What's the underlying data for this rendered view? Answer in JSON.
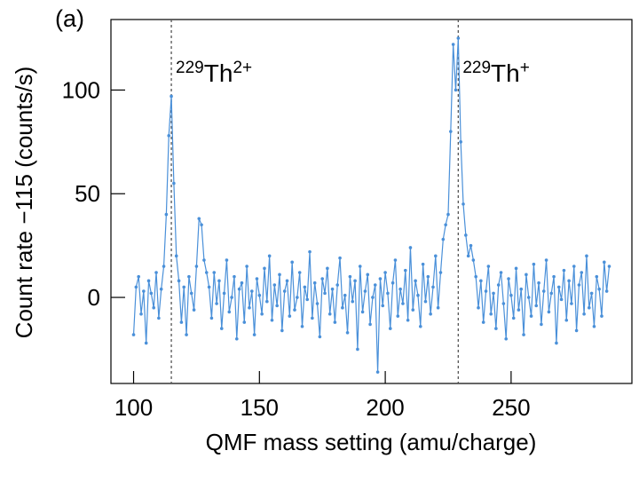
{
  "chart_data": {
    "type": "line",
    "panel_label": "(a)",
    "xlabel": "QMF mass setting (amu/charge)",
    "ylabel": "Count rate −115 (counts/s)",
    "color": "#4a90d9",
    "xlim": [
      91,
      298
    ],
    "ylim": [
      -41.5,
      134
    ],
    "xticks": [
      100,
      150,
      200,
      250
    ],
    "yticks": [
      0,
      50,
      100
    ],
    "vlines": [
      115,
      229
    ],
    "annotations": [
      {
        "mass": "229",
        "element": "Th",
        "charge": "2+"
      },
      {
        "mass": "229",
        "element": "Th",
        "charge": "+"
      }
    ],
    "x": [
      100,
      101,
      102,
      103,
      104,
      105,
      106,
      107,
      108,
      109,
      110,
      111,
      112,
      113,
      114,
      115,
      116,
      117,
      118,
      119,
      120,
      121,
      122,
      123,
      124,
      125,
      126,
      127,
      128,
      129,
      130,
      131,
      132,
      133,
      134,
      135,
      136,
      137,
      138,
      139,
      140,
      141,
      142,
      143,
      144,
      145,
      146,
      147,
      148,
      149,
      150,
      151,
      152,
      153,
      154,
      155,
      156,
      157,
      158,
      159,
      160,
      161,
      162,
      163,
      164,
      165,
      166,
      167,
      168,
      169,
      170,
      171,
      172,
      173,
      174,
      175,
      176,
      177,
      178,
      179,
      180,
      181,
      182,
      183,
      184,
      185,
      186,
      187,
      188,
      189,
      190,
      191,
      192,
      193,
      194,
      195,
      196,
      197,
      198,
      199,
      200,
      201,
      202,
      203,
      204,
      205,
      206,
      207,
      208,
      209,
      210,
      211,
      212,
      213,
      214,
      215,
      216,
      217,
      218,
      219,
      220,
      221,
      222,
      223,
      224,
      225,
      226,
      227,
      228,
      229,
      230,
      231,
      232,
      233,
      234,
      235,
      236,
      237,
      238,
      239,
      240,
      241,
      242,
      243,
      244,
      245,
      246,
      247,
      248,
      249,
      250,
      251,
      252,
      253,
      254,
      255,
      256,
      257,
      258,
      259,
      260,
      261,
      262,
      263,
      264,
      265,
      266,
      267,
      268,
      269,
      270,
      271,
      272,
      273,
      274,
      275,
      276,
      277,
      278,
      279,
      280,
      281,
      282,
      283,
      284,
      285,
      286,
      287,
      288,
      289
    ],
    "values": [
      -18,
      5,
      10,
      -8,
      3,
      -22,
      8,
      2,
      -5,
      12,
      -10,
      4,
      15,
      40,
      78,
      97,
      55,
      20,
      8,
      -12,
      5,
      -18,
      10,
      2,
      -6,
      15,
      38,
      35,
      18,
      12,
      5,
      -10,
      12,
      -3,
      8,
      -15,
      2,
      18,
      -7,
      0,
      10,
      -20,
      4,
      7,
      -12,
      15,
      -5,
      3,
      -18,
      9,
      1,
      -8,
      14,
      -2,
      20,
      -11,
      6,
      -4,
      11,
      -16,
      3,
      8,
      -9,
      17,
      -6,
      0,
      12,
      -14,
      5,
      -1,
      22,
      -10,
      7,
      -3,
      -19,
      9,
      2,
      14,
      -8,
      4,
      -12,
      6,
      19,
      -5,
      1,
      -17,
      10,
      -2,
      8,
      -25,
      15,
      -7,
      3,
      11,
      -13,
      0,
      6,
      -36,
      9,
      -4,
      12,
      2,
      -15,
      7,
      18,
      -9,
      4,
      -3,
      13,
      -11,
      24,
      -6,
      8,
      1,
      -14,
      16,
      -2,
      10,
      -8,
      5,
      20,
      -5,
      12,
      28,
      35,
      40,
      80,
      122,
      100,
      125,
      75,
      45,
      30,
      20,
      25,
      18,
      10,
      -5,
      8,
      -12,
      3,
      15,
      -8,
      2,
      -15,
      6,
      12,
      -3,
      -20,
      9,
      1,
      -10,
      14,
      -6,
      4,
      -18,
      11,
      0,
      -9,
      16,
      -4,
      7,
      -13,
      3,
      18,
      -7,
      2,
      10,
      -22,
      5,
      -1,
      13,
      -11,
      8,
      -3,
      15,
      -16,
      6,
      12,
      -8,
      20,
      -5,
      2,
      -14,
      10,
      4,
      -9,
      17,
      3,
      15
    ]
  }
}
